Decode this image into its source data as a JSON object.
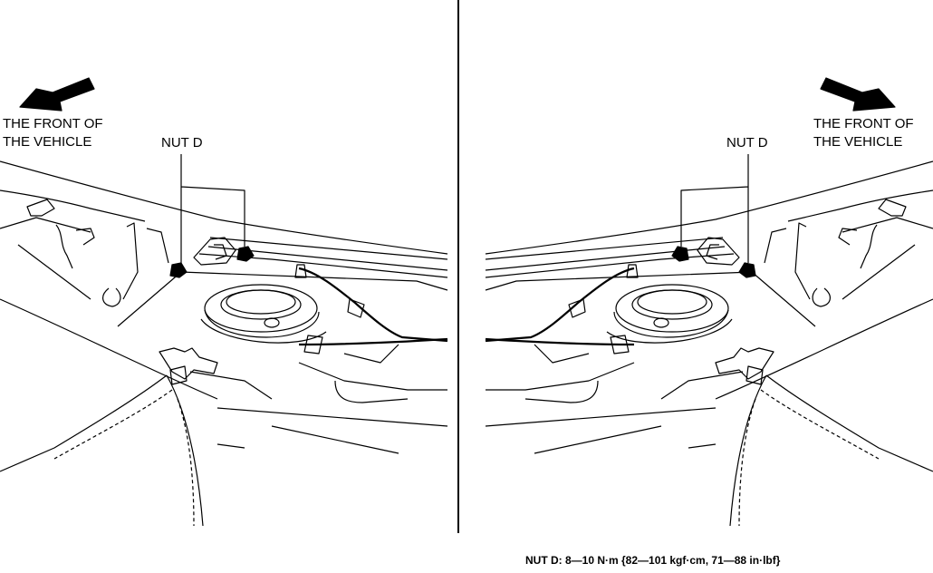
{
  "left_view": {
    "front_label_line1": "THE FRONT OF",
    "front_label_line2": "THE VEHICLE",
    "nut_label": "NUT D"
  },
  "right_view": {
    "front_label_line1": "THE FRONT OF",
    "front_label_line2": "THE VEHICLE",
    "nut_label": "NUT D"
  },
  "torque_spec": "NUT D: 8—10 N·m {82—101 kgf·cm, 71—88 in·lbf}"
}
